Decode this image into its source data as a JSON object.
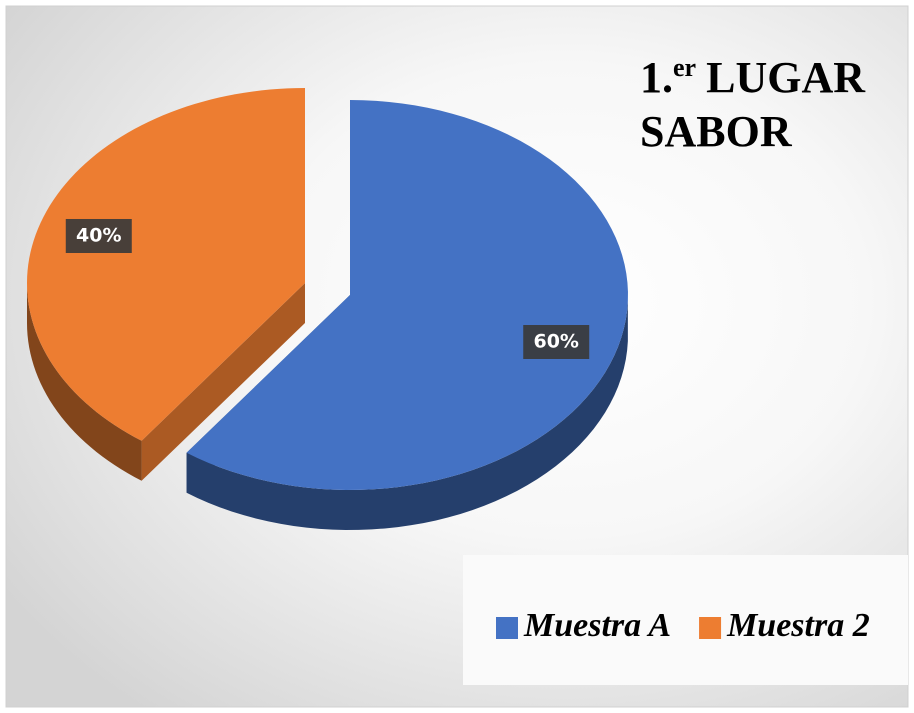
{
  "chart_data": {
    "type": "pie3d",
    "title": [
      "1.",
      "er",
      "LUGAR",
      "SABOR"
    ],
    "categories": [
      "Muestra A",
      "Muestra 2"
    ],
    "values": [
      60,
      40
    ],
    "value_labels": [
      "60%",
      "40%"
    ],
    "colors": [
      "#4472c4",
      "#ed7d31"
    ],
    "legend": "bottom-right"
  }
}
